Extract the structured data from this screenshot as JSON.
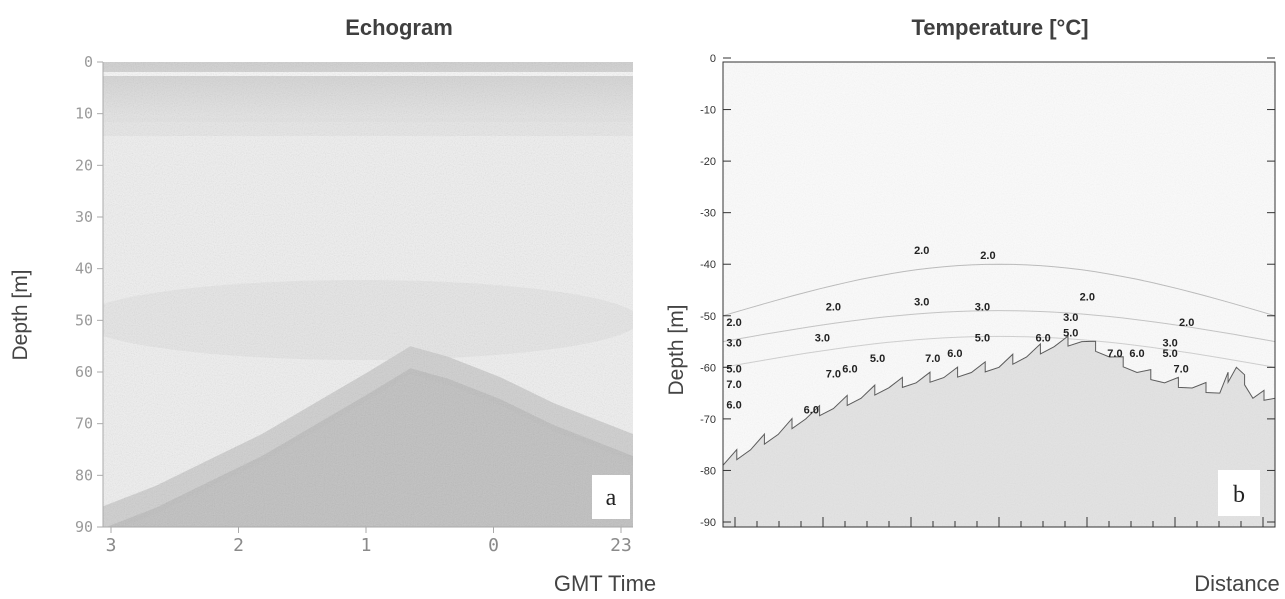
{
  "panels": {
    "a": {
      "title": "Echogram",
      "ylabel": "Depth [m]",
      "xlabel": "GMT Time",
      "tag": "a"
    },
    "b": {
      "title": "Temperature [°C]",
      "ylabel": "Depth [m]",
      "xlabel": "Distance",
      "tag": "b"
    }
  },
  "chart_data": [
    {
      "type": "heatmap",
      "title": "Echogram",
      "ylabel": "Depth [m]",
      "xlabel": "GMT Time",
      "y_ticks": [
        "0",
        "10",
        "20",
        "30",
        "40",
        "50",
        "60",
        "70",
        "80",
        "90"
      ],
      "ylim": [
        0,
        90
      ],
      "x_ticks": [
        "3",
        "2",
        "1",
        "0",
        "23"
      ],
      "seafloor_depth_profile": [
        {
          "x": 0.0,
          "depth": 86
        },
        {
          "x": 0.1,
          "depth": 82
        },
        {
          "x": 0.2,
          "depth": 77
        },
        {
          "x": 0.3,
          "depth": 72
        },
        {
          "x": 0.4,
          "depth": 66
        },
        {
          "x": 0.5,
          "depth": 60
        },
        {
          "x": 0.58,
          "depth": 55
        },
        {
          "x": 0.65,
          "depth": 57
        },
        {
          "x": 0.75,
          "depth": 61
        },
        {
          "x": 0.85,
          "depth": 66
        },
        {
          "x": 1.0,
          "depth": 72
        }
      ]
    },
    {
      "type": "line",
      "title": "Temperature [°C]",
      "ylabel": "Depth [m]",
      "xlabel": "Distance",
      "y_ticks": [
        "0",
        "-10",
        "-20",
        "-30",
        "-40",
        "-50",
        "-60",
        "-70",
        "-80",
        "-90"
      ],
      "ylim": [
        -90,
        0
      ],
      "bottom_profile": [
        {
          "x": 0.0,
          "y": -79
        },
        {
          "x": 0.05,
          "y": -76
        },
        {
          "x": 0.1,
          "y": -73
        },
        {
          "x": 0.15,
          "y": -70
        },
        {
          "x": 0.2,
          "y": -68
        },
        {
          "x": 0.25,
          "y": -66
        },
        {
          "x": 0.3,
          "y": -64
        },
        {
          "x": 0.35,
          "y": -63
        },
        {
          "x": 0.4,
          "y": -62
        },
        {
          "x": 0.45,
          "y": -61
        },
        {
          "x": 0.5,
          "y": -60
        },
        {
          "x": 0.55,
          "y": -58
        },
        {
          "x": 0.6,
          "y": -56
        },
        {
          "x": 0.65,
          "y": -55
        },
        {
          "x": 0.7,
          "y": -58
        },
        {
          "x": 0.75,
          "y": -61
        },
        {
          "x": 0.8,
          "y": -63
        },
        {
          "x": 0.85,
          "y": -64
        },
        {
          "x": 0.9,
          "y": -65
        },
        {
          "x": 0.93,
          "y": -60
        },
        {
          "x": 0.96,
          "y": -66
        },
        {
          "x": 1.0,
          "y": -66
        }
      ],
      "contour_labels": [
        {
          "text": "2.0",
          "x": 0.02,
          "y": -52
        },
        {
          "text": "3.0",
          "x": 0.02,
          "y": -56
        },
        {
          "text": "5.0",
          "x": 0.02,
          "y": -61
        },
        {
          "text": "7.0",
          "x": 0.02,
          "y": -64
        },
        {
          "text": "6.0",
          "x": 0.02,
          "y": -68
        },
        {
          "text": "2.0",
          "x": 0.2,
          "y": -49
        },
        {
          "text": "3.0",
          "x": 0.18,
          "y": -55
        },
        {
          "text": "7.0",
          "x": 0.2,
          "y": -62
        },
        {
          "text": "6.0",
          "x": 0.23,
          "y": -61
        },
        {
          "text": "5.0",
          "x": 0.28,
          "y": -59
        },
        {
          "text": "6.0",
          "x": 0.16,
          "y": -69
        },
        {
          "text": "2.0",
          "x": 0.36,
          "y": -38
        },
        {
          "text": "3.0",
          "x": 0.36,
          "y": -48
        },
        {
          "text": "7.0",
          "x": 0.38,
          "y": -59
        },
        {
          "text": "6.0",
          "x": 0.42,
          "y": -58
        },
        {
          "text": "2.0",
          "x": 0.48,
          "y": -39
        },
        {
          "text": "3.0",
          "x": 0.47,
          "y": -49
        },
        {
          "text": "5.0",
          "x": 0.47,
          "y": -55
        },
        {
          "text": "6.0",
          "x": 0.58,
          "y": -55
        },
        {
          "text": "2.0",
          "x": 0.66,
          "y": -47
        },
        {
          "text": "3.0",
          "x": 0.63,
          "y": -51
        },
        {
          "text": "5.0",
          "x": 0.63,
          "y": -54
        },
        {
          "text": "7.0",
          "x": 0.71,
          "y": -58
        },
        {
          "text": "6.0",
          "x": 0.75,
          "y": -58
        },
        {
          "text": "3.0",
          "x": 0.81,
          "y": -56
        },
        {
          "text": "5.0",
          "x": 0.81,
          "y": -58
        },
        {
          "text": "2.0",
          "x": 0.84,
          "y": -52
        },
        {
          "text": "7.0",
          "x": 0.83,
          "y": -61
        }
      ]
    }
  ]
}
